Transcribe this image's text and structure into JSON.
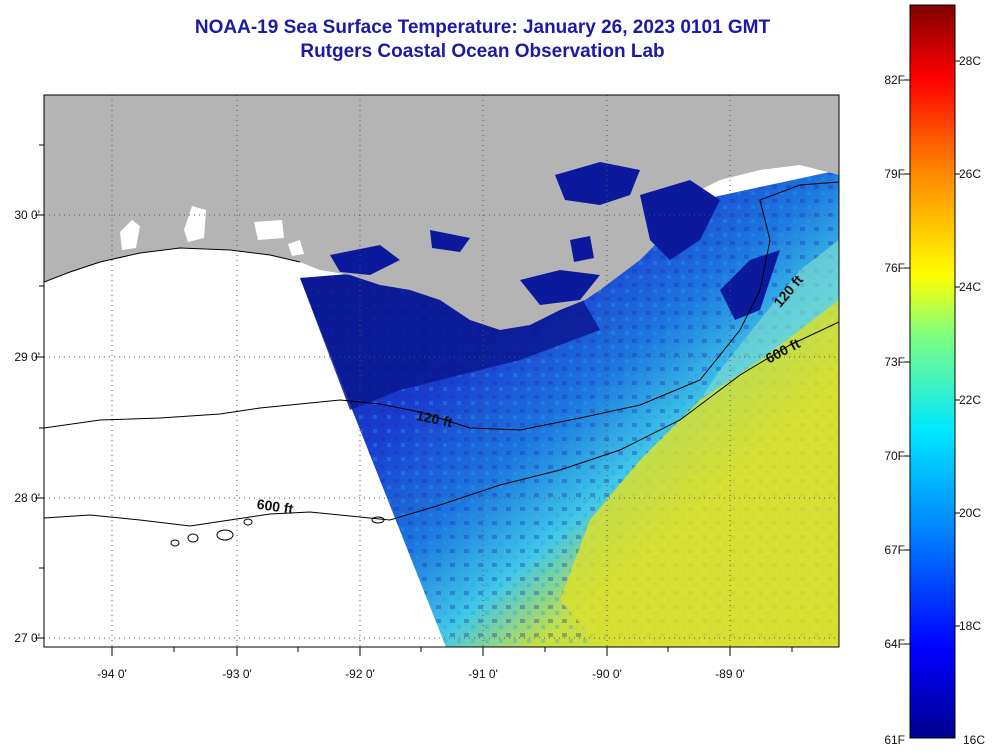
{
  "title": {
    "line1": "NOAA-19 Sea Surface Temperature:  January 26, 2023 0101 GMT",
    "line2": "Rutgers Coastal Ocean Observation Lab"
  },
  "map": {
    "lat_labels": [
      "30 0'",
      "29 0'",
      "28 0'",
      "27 0'"
    ],
    "lon_labels": [
      "-94 0'",
      "-93 0'",
      "-92 0'",
      "-91 0'",
      "-90 0'",
      "-89 0'"
    ],
    "contour_labels": {
      "c120_west": "120 ft",
      "c600_west": "600 ft",
      "c120_east": "120 ft",
      "c600_east": "600 ft"
    },
    "colors": {
      "land": "#b4b4b4",
      "no_data": "#ffffff",
      "cold": "#0a1a9c",
      "warm": "#dcdc2a"
    }
  },
  "colorbar": {
    "fahrenheit_labels": [
      "82F",
      "79F",
      "76F",
      "73F",
      "70F",
      "67F",
      "64F",
      "61F"
    ],
    "celsius_labels": [
      "28C",
      "26C",
      "24C",
      "22C",
      "20C",
      "18C",
      "16C"
    ],
    "range_celsius": [
      16,
      29
    ]
  }
}
